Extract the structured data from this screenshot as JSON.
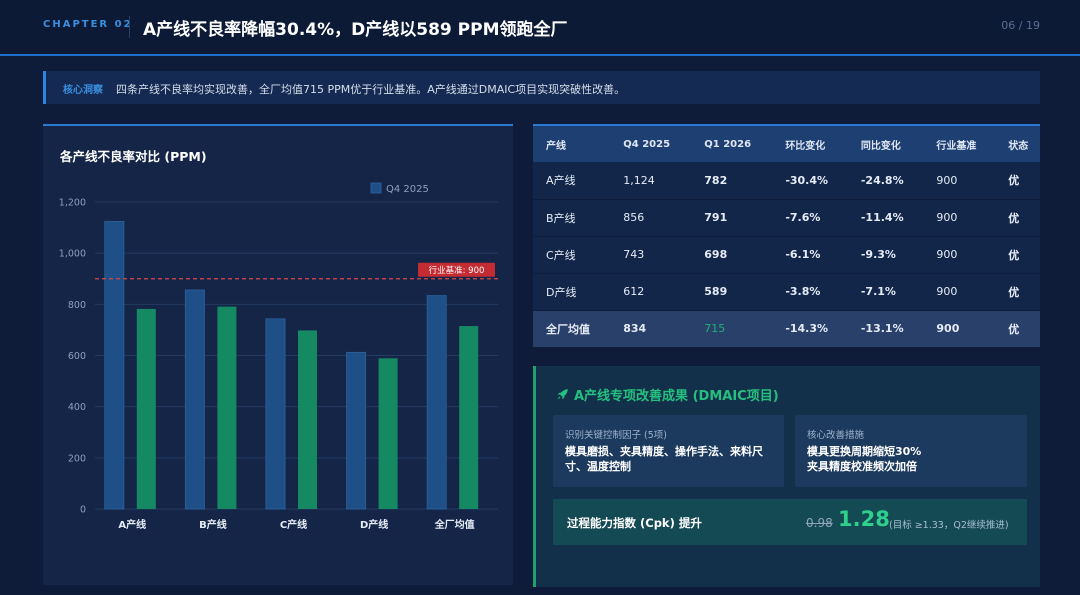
{
  "header": {
    "chapter": "CHAPTER 02",
    "title": "A产线不良率降幅30.4%，D产线以589 PPM领跑全厂",
    "page": "06 / 19"
  },
  "insight": {
    "tag": "核心洞察",
    "text": "四条产线不良率均实现改善，全厂均值715 PPM优于行业基准。A产线通过DMAIC项目实现突破性改善。"
  },
  "chart": {
    "title": "各产线不良率对比 (PPM)",
    "benchmark_label": "行业基准: 900"
  },
  "chart_data": {
    "type": "bar",
    "categories": [
      "A产线",
      "B产线",
      "C产线",
      "D产线",
      "全厂均值"
    ],
    "series": [
      {
        "name": "Q4 2025",
        "values": [
          1124,
          856,
          743,
          612,
          834
        ],
        "color": "#1e4f86"
      },
      {
        "values": [
          782,
          791,
          698,
          589,
          715
        ],
        "color": "#158a62"
      }
    ],
    "benchmark": 900,
    "ylim": [
      0,
      1200
    ],
    "yticks": [
      0,
      200,
      400,
      600,
      800,
      1000,
      1200
    ],
    "ytick_labels": [
      "0",
      "200",
      "400",
      "600",
      "800",
      "1,000",
      "1,200"
    ],
    "legend_position": "top-right",
    "grid": true
  },
  "table": {
    "headers": [
      "产线",
      "Q4 2025",
      "Q1 2026",
      "环比变化",
      "同比变化",
      "行业基准",
      "状态"
    ],
    "rows": [
      [
        "A产线",
        "1,124",
        "782",
        "-30.4%",
        "-24.8%",
        "900",
        "优"
      ],
      [
        "B产线",
        "856",
        "791",
        "-7.6%",
        "-11.4%",
        "900",
        "优"
      ],
      [
        "C产线",
        "743",
        "698",
        "-6.1%",
        "-9.3%",
        "900",
        "优"
      ],
      [
        "D产线",
        "612",
        "589",
        "-3.8%",
        "-7.1%",
        "900",
        "优"
      ],
      [
        "全厂均值",
        "834",
        "715",
        "-14.3%",
        "-13.1%",
        "900",
        "优"
      ]
    ]
  },
  "dmaic": {
    "title": "A产线专项改善成果 (DMAIC项目)",
    "icon": "rocket-icon",
    "card1": {
      "label": "识别关键控制因子 (5项)",
      "text": "模具磨损、夹具精度、操作手法、来料尺寸、温度控制"
    },
    "card2": {
      "label": "核心改善措施",
      "line1": "模具更换周期缩短30%",
      "line2": "夹具精度校准频次加倍"
    },
    "cpk": {
      "label": "过程能力指数 (Cpk) 提升",
      "old": "0.98",
      "new": "1.28",
      "note": "(目标 ≥1.33，Q2继续推进)"
    }
  }
}
